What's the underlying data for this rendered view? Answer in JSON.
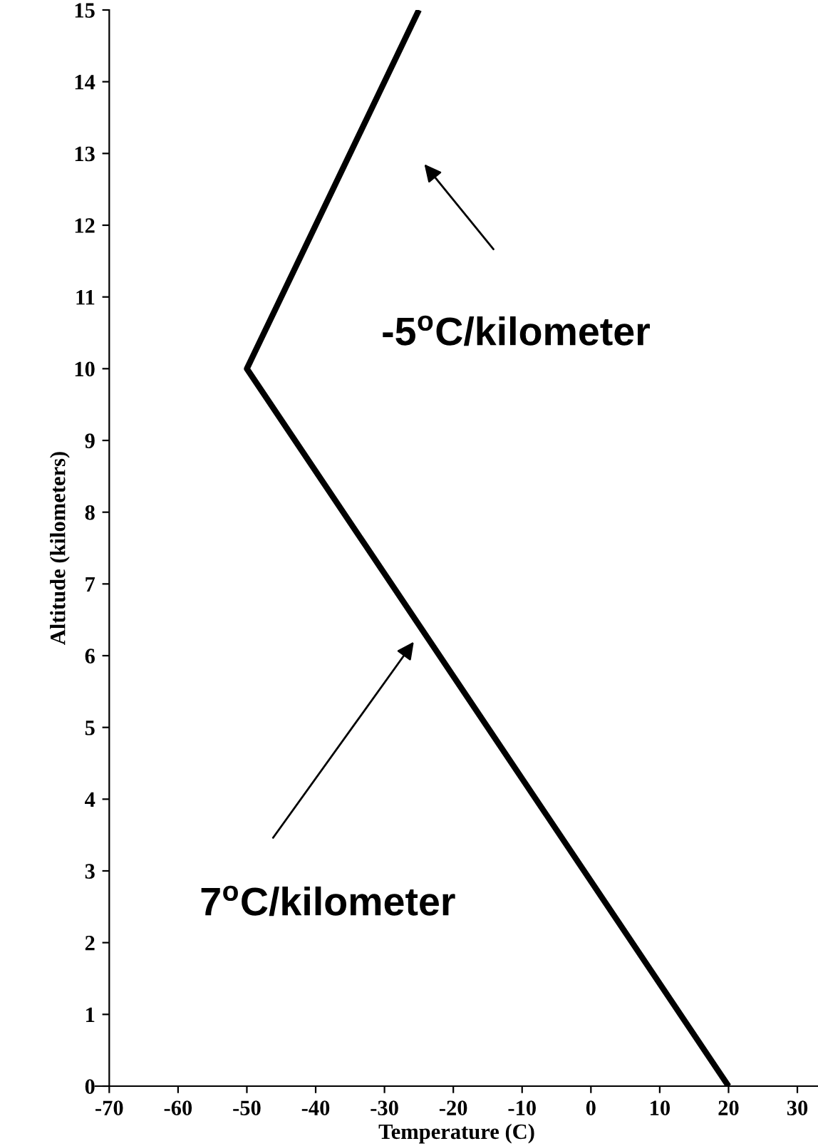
{
  "chart_data": {
    "type": "line",
    "xlabel": "Temperature (C)",
    "ylabel": "Altitude (kilometers)",
    "x": [
      20,
      -50,
      -25
    ],
    "series": [
      {
        "color": "#000000",
        "values": [
          0,
          10,
          15
        ]
      }
    ],
    "xlim": [
      -72,
      33
    ],
    "xticks": [
      -70,
      -60,
      -50,
      -40,
      -30,
      -20,
      -10,
      0,
      10,
      20,
      30
    ],
    "ylim": [
      0,
      15
    ],
    "yticks": [
      0,
      1,
      2,
      3,
      4,
      5,
      6,
      7,
      8,
      9,
      10,
      11,
      12,
      13,
      14,
      15
    ],
    "grid": false,
    "annotations": [
      "-5$^{o}$C/kilometer",
      "7$^{o}$C/kilometer"
    ]
  }
}
